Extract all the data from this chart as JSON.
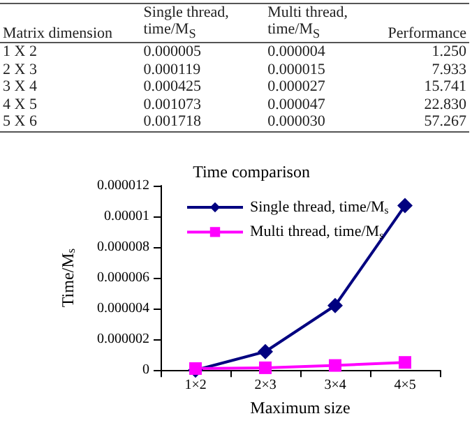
{
  "chart_data": [
    {
      "type": "other",
      "xlabel": "Matrix dimension",
      "categories": [
        "1 X 2",
        "2 X 3",
        "3 X 4",
        "4 X 5",
        "5 X 6"
      ],
      "series": [
        {
          "name": "Single thread, time/M$_{S}$",
          "values": [
            5e-06,
            0.000119,
            0.000425,
            0.001073,
            0.001718
          ],
          "value_labels": [
            "0.000005",
            "0.000119",
            "0.000425",
            "0.001073",
            "0.001718"
          ]
        },
        {
          "name": "Multi thread, time/M$_{S}$",
          "values": [
            4e-06,
            1.5e-05,
            2.7e-05,
            4.7e-05,
            3e-05
          ],
          "value_labels": [
            "0.000004",
            "0.000015",
            "0.000027",
            "0.000047",
            "0.000030"
          ]
        },
        {
          "name": "Performance",
          "values": [
            1.25,
            7.933,
            15.741,
            22.83,
            57.267
          ],
          "value_labels": [
            "1.250",
            "7.933",
            "15.741",
            "22.830",
            "57.267"
          ]
        }
      ]
    },
    {
      "type": "line",
      "title": "Time comparison",
      "xlabel": "Maximum size",
      "ylabel": "Time/M$_{s}$",
      "categories": [
        "1×2",
        "2×3",
        "3×4",
        "4×5"
      ],
      "ylim": [
        0,
        1.2e-05
      ],
      "yticks": [
        0,
        {
          "value": 2e-06,
          "label": "0.000002"
        },
        {
          "value": 4e-06,
          "label": "0.000004"
        },
        {
          "value": 6e-06,
          "label": "0.000006"
        },
        {
          "value": 8e-06,
          "label": "0.000008"
        },
        {
          "value": 1e-05,
          "label": "0.00001"
        },
        {
          "value": 1.2e-05,
          "label": "0.000012"
        }
      ],
      "grid": false,
      "legend": "top left",
      "series": [
        {
          "name": "Single thread, time/M$_{s}$",
          "color": "#000080",
          "marker": "diamond",
          "values": [
            0,
            1.2e-06,
            4.2e-06,
            1.07e-05
          ]
        },
        {
          "name": "Multi thread, time/M$_{s}$",
          "color": "#ff00ff",
          "marker": "square",
          "values": [
            1e-07,
            1.5e-07,
            3e-07,
            5e-07
          ]
        }
      ]
    }
  ]
}
